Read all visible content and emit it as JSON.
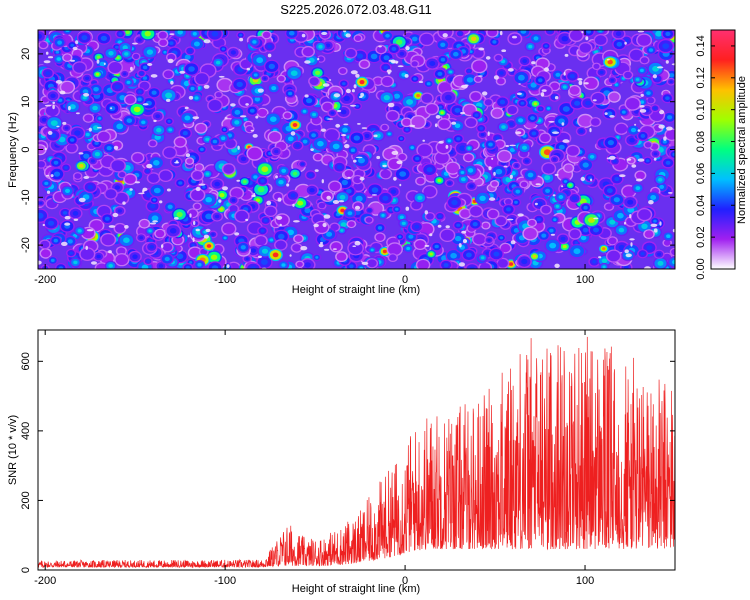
{
  "figure_title": "S225.2026.072.03.48.G11",
  "chart_data": [
    {
      "type": "heatmap",
      "title": "S225.2026.072.03.48.G11",
      "xlabel": "Height of straight line (km)",
      "ylabel": "Frequency (Hz)",
      "xlim": [
        -204,
        150
      ],
      "ylim": [
        -25,
        25
      ],
      "x_ticks": [
        -200,
        -100,
        0,
        100
      ],
      "y_ticks": [
        -20,
        -10,
        0,
        10,
        20
      ],
      "x_tick_labels": [
        "-200",
        "-100",
        "0",
        "100"
      ],
      "y_tick_labels": [
        "-20",
        "-10",
        "0",
        "10",
        "20"
      ],
      "colorbar": {
        "label": "Normalized spectral amplitude",
        "range": [
          0.0,
          0.15
        ],
        "ticks": [
          0.0,
          0.02,
          0.04,
          0.06,
          0.08,
          0.1,
          0.12,
          0.14
        ],
        "tick_labels": [
          "0.00",
          "0.02",
          "0.04",
          "0.06",
          "0.08",
          "0.10",
          "0.12",
          "0.14"
        ],
        "colormap": [
          "#ffffff",
          "#a020f0",
          "#2020ff",
          "#00c0ff",
          "#00ff80",
          "#a0ff00",
          "#ffc000",
          "#ff2020",
          "#ff3070"
        ]
      },
      "description_values": {
        "background_amplitude": 0.02,
        "typical_blob_amplitude": 0.05,
        "max_amplitude": 0.14
      }
    },
    {
      "type": "line",
      "xlabel": "Height of straight line (km)",
      "ylabel": "SNR (10 * v/v)",
      "xlim": [
        -204,
        150
      ],
      "ylim": [
        0,
        690
      ],
      "x_ticks": [
        -200,
        -100,
        0,
        100
      ],
      "y_ticks": [
        0,
        200,
        400,
        600
      ],
      "x_tick_labels": [
        "-200",
        "-100",
        "0",
        "100"
      ],
      "y_tick_labels": [
        "0",
        "200",
        "400",
        "600"
      ],
      "series": [
        {
          "name": "SNR",
          "color": "#ee2020",
          "envelope_x": [
            -204,
            -80,
            -75,
            -65,
            -55,
            -45,
            -35,
            -25,
            -15,
            -5,
            5,
            15,
            25,
            35,
            50,
            65,
            80,
            95,
            110,
            125,
            140,
            150
          ],
          "envelope_min": [
            8,
            8,
            10,
            12,
            12,
            12,
            15,
            20,
            30,
            40,
            55,
            60,
            60,
            60,
            60,
            60,
            60,
            60,
            60,
            60,
            60,
            60
          ],
          "envelope_max": [
            28,
            30,
            60,
            140,
            90,
            100,
            130,
            170,
            250,
            320,
            420,
            470,
            470,
            490,
            540,
            680,
            670,
            690,
            660,
            620,
            550,
            560
          ]
        }
      ]
    }
  ]
}
